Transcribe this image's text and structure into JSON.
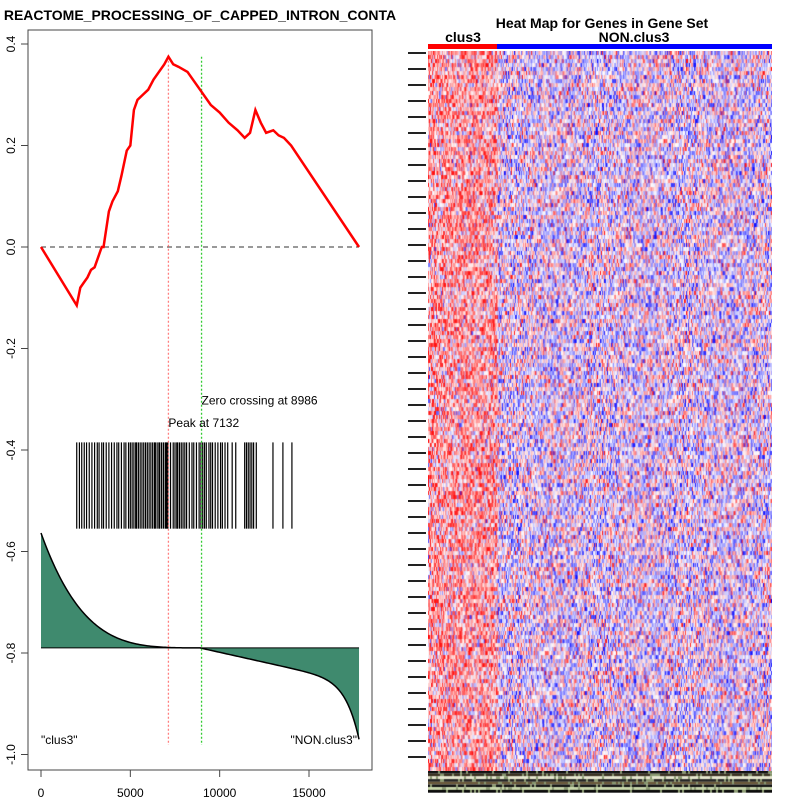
{
  "chart_data": [
    {
      "type": "line",
      "title": "REACTOME_PROCESSING_OF_CAPPED_INTRON_CONTA",
      "xlim": [
        0,
        17800
      ],
      "ylim": [
        -1.0,
        0.4
      ],
      "x_ticks": [
        "0",
        "5000",
        "10000",
        "15000"
      ],
      "x_tick_values": [
        0,
        5000,
        10000,
        15000
      ],
      "y_ticks": [
        "0.4",
        "0.2",
        "0.0",
        "-0.2",
        "-0.4",
        "-0.6",
        "-0.8",
        "-1.0"
      ],
      "y_tick_values": [
        0.4,
        0.2,
        0.0,
        -0.2,
        -0.4,
        -0.6,
        -0.8,
        -1.0
      ],
      "running_es": {
        "x": [
          0,
          2000,
          2200,
          2400,
          2600,
          2800,
          3000,
          3200,
          3400,
          3500,
          3800,
          4000,
          4300,
          4500,
          4800,
          5000,
          5200,
          5400,
          5700,
          6000,
          6300,
          6600,
          6900,
          7132,
          7400,
          7700,
          8200,
          8600,
          9000,
          9500,
          10000,
          10500,
          11000,
          11400,
          11700,
          12000,
          12300,
          12600,
          13000,
          13300,
          13600,
          14000,
          17800
        ],
        "y": [
          0,
          -0.115,
          -0.08,
          -0.07,
          -0.06,
          -0.045,
          -0.04,
          -0.02,
          0.0,
          0.0,
          0.07,
          0.09,
          0.11,
          0.14,
          0.19,
          0.2,
          0.27,
          0.29,
          0.3,
          0.31,
          0.33,
          0.345,
          0.36,
          0.375,
          0.36,
          0.355,
          0.345,
          0.325,
          0.305,
          0.28,
          0.265,
          0.245,
          0.23,
          0.215,
          0.225,
          0.27,
          0.245,
          0.225,
          0.23,
          0.22,
          0.215,
          0.2,
          0.0
        ],
        "color": "#ff0000"
      },
      "hits": [
        2000,
        2150,
        2280,
        2420,
        2550,
        2700,
        2850,
        3000,
        3150,
        3250,
        3400,
        3500,
        3650,
        3800,
        3950,
        4100,
        4250,
        4350,
        4500,
        4650,
        4750,
        4900,
        5000,
        5100,
        5200,
        5300,
        5350,
        5450,
        5550,
        5650,
        5750,
        5850,
        5950,
        6050,
        6150,
        6250,
        6350,
        6400,
        6500,
        6600,
        6650,
        6750,
        6850,
        6950,
        7000,
        7050,
        7100,
        7250,
        7400,
        7500,
        7600,
        7650,
        7750,
        7850,
        7950,
        8050,
        8150,
        8300,
        8450,
        8550,
        8700,
        8850,
        8950,
        9050,
        9150,
        9250,
        9400,
        9500,
        9600,
        9750,
        9900,
        10050,
        10150,
        10300,
        10450,
        10700,
        10900,
        11400,
        11500,
        11600,
        11700,
        11800,
        11900,
        12050,
        12983,
        13540,
        14044
      ],
      "ranked_metric": {
        "start": -0.555,
        "baseline": -0.79,
        "end": -0.97,
        "color": "#3f8a6e"
      },
      "zero_line": 0.0,
      "peak": {
        "x": 7132,
        "label": "Peak at 7132",
        "color": "#ff7f7f"
      },
      "zero_crossing": {
        "x": 8986,
        "label": "Zero crossing at 8986",
        "color": "#33cc33"
      },
      "annotations": [
        "\"clus3\"",
        "\"NON.clus3\""
      ]
    },
    {
      "type": "heatmap",
      "title": "Heat Map for Genes in Gene Set",
      "groups": [
        {
          "name": "clus3",
          "color": "#ff0000",
          "fraction": 0.2
        },
        {
          "name": "NON.clus3",
          "color": "#0000ff",
          "fraction": 0.8
        }
      ],
      "row_count": 180,
      "column_count": 340,
      "low_color": "#0000ff",
      "high_color": "#ff0000"
    }
  ]
}
